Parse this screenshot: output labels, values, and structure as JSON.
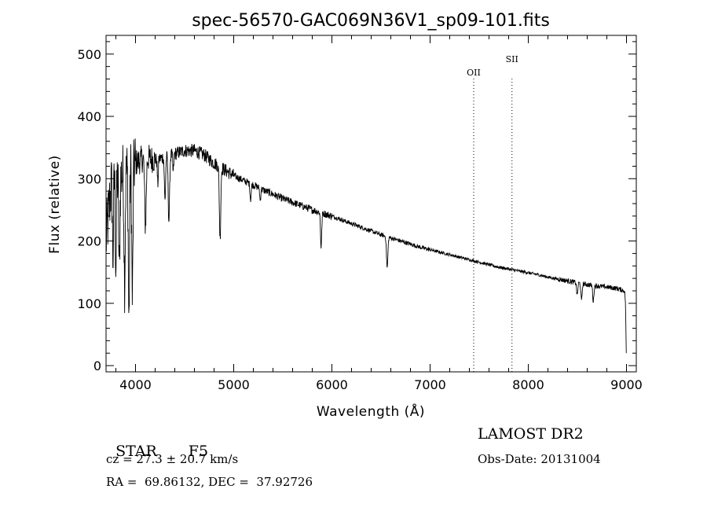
{
  "chart_data": {
    "type": "line",
    "title": "spec-56570-GAC069N36V1_sp09-101.fits",
    "xlabel": "Wavelength (Å)",
    "ylabel": "Flux (relative)",
    "xlim": [
      3700,
      9100
    ],
    "ylim": [
      -10,
      530
    ],
    "xticks": [
      4000,
      5000,
      6000,
      7000,
      8000,
      9000
    ],
    "yticks": [
      0,
      100,
      200,
      300,
      400,
      500
    ],
    "grid": false,
    "continuum": [
      [
        3700,
        200
      ],
      [
        3750,
        285
      ],
      [
        3800,
        300
      ],
      [
        3850,
        305
      ],
      [
        3900,
        310
      ],
      [
        3950,
        318
      ],
      [
        4000,
        325
      ],
      [
        4100,
        335
      ],
      [
        4200,
        330
      ],
      [
        4300,
        335
      ],
      [
        4400,
        340
      ],
      [
        4500,
        345
      ],
      [
        4600,
        345
      ],
      [
        4700,
        338
      ],
      [
        4800,
        325
      ],
      [
        4900,
        315
      ],
      [
        5000,
        305
      ],
      [
        5100,
        297
      ],
      [
        5200,
        290
      ],
      [
        5300,
        282
      ],
      [
        5400,
        275
      ],
      [
        5500,
        268
      ],
      [
        5600,
        262
      ],
      [
        5700,
        256
      ],
      [
        5800,
        250
      ],
      [
        5900,
        245
      ],
      [
        6000,
        240
      ],
      [
        6100,
        234
      ],
      [
        6200,
        228
      ],
      [
        6300,
        222
      ],
      [
        6400,
        216
      ],
      [
        6500,
        210
      ],
      [
        6600,
        205
      ],
      [
        6700,
        200
      ],
      [
        6800,
        195
      ],
      [
        6900,
        190
      ],
      [
        7000,
        186
      ],
      [
        7100,
        182
      ],
      [
        7200,
        178
      ],
      [
        7300,
        174
      ],
      [
        7400,
        170
      ],
      [
        7500,
        166
      ],
      [
        7600,
        162
      ],
      [
        7700,
        158
      ],
      [
        7800,
        155
      ],
      [
        7900,
        152
      ],
      [
        8000,
        149
      ],
      [
        8100,
        146
      ],
      [
        8200,
        142
      ],
      [
        8300,
        139
      ],
      [
        8400,
        136
      ],
      [
        8500,
        133
      ],
      [
        8600,
        130
      ],
      [
        8700,
        128
      ],
      [
        8800,
        126
      ],
      [
        8900,
        124
      ],
      [
        8980,
        120
      ],
      [
        8990,
        100
      ],
      [
        9000,
        0
      ]
    ],
    "absorption_lines": [
      {
        "x": 3770,
        "depth": 120,
        "width": 5
      },
      {
        "x": 3800,
        "depth": 140,
        "width": 5
      },
      {
        "x": 3835,
        "depth": 150,
        "width": 6
      },
      {
        "x": 3889,
        "depth": 170,
        "width": 6
      },
      {
        "x": 3933,
        "depth": 245,
        "width": 6
      },
      {
        "x": 3968,
        "depth": 215,
        "width": 6
      },
      {
        "x": 4101,
        "depth": 110,
        "width": 8
      },
      {
        "x": 4227,
        "depth": 40,
        "width": 5
      },
      {
        "x": 4300,
        "depth": 70,
        "width": 6
      },
      {
        "x": 4340,
        "depth": 105,
        "width": 7
      },
      {
        "x": 4384,
        "depth": 30,
        "width": 5
      },
      {
        "x": 4861,
        "depth": 115,
        "width": 7
      },
      {
        "x": 5172,
        "depth": 25,
        "width": 6
      },
      {
        "x": 5270,
        "depth": 20,
        "width": 5
      },
      {
        "x": 5890,
        "depth": 55,
        "width": 6
      },
      {
        "x": 6563,
        "depth": 50,
        "width": 7
      },
      {
        "x": 8498,
        "depth": 20,
        "width": 6
      },
      {
        "x": 8542,
        "depth": 28,
        "width": 6
      },
      {
        "x": 8662,
        "depth": 26,
        "width": 6
      }
    ],
    "line_markers": [
      {
        "label": "OII",
        "x": 7444
      },
      {
        "label": "SII",
        "x": 7834
      }
    ]
  },
  "info": {
    "class_label": "STAR",
    "subclass": "F5",
    "cz": "cz = 27.3 ± 20.7 km/s",
    "coords": "RA =  69.86132, DEC =  37.92726",
    "survey": "LAMOST DR2",
    "obs_date": "Obs-Date: 20131004"
  }
}
